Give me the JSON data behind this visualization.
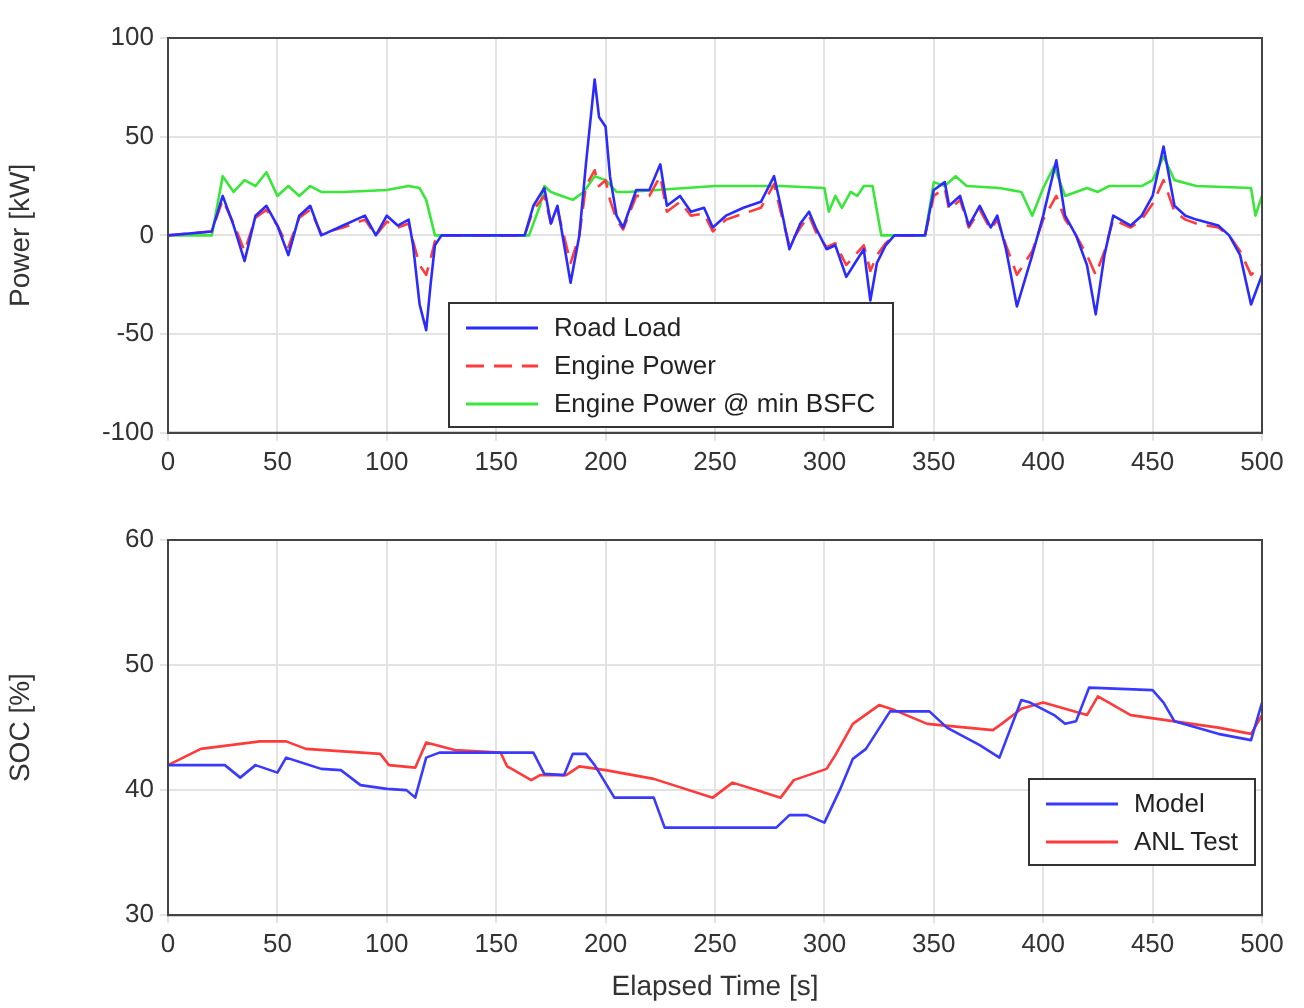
{
  "chart_data": [
    {
      "type": "line",
      "ylabel": "Power [kW]",
      "xlim": [
        0,
        500
      ],
      "xticks": [
        0,
        50,
        100,
        150,
        200,
        250,
        300,
        350,
        400,
        450,
        500
      ],
      "ylim": [
        -100,
        100
      ],
      "yticks": [
        -100,
        -50,
        0,
        50,
        100
      ],
      "grid": true,
      "legend": "bottom",
      "marker": "none",
      "series": [
        {
          "name": "Road Load",
          "color": "#2b2bff",
          "line_style": "solid",
          "x": [
            0,
            20,
            25,
            30,
            35,
            40,
            45,
            50,
            55,
            60,
            65,
            70,
            80,
            90,
            95,
            100,
            105,
            110,
            112,
            115,
            118,
            120,
            122,
            125,
            163,
            167,
            172,
            175,
            178,
            184,
            188,
            191,
            195,
            197,
            200,
            202,
            205,
            208,
            214,
            220,
            225,
            228,
            234,
            239,
            245,
            249,
            255,
            263,
            271,
            277,
            280,
            284,
            289,
            293,
            296,
            301,
            305,
            310,
            314,
            318,
            321,
            324,
            328,
            332,
            346,
            350,
            355,
            357,
            362,
            366,
            371,
            376,
            379,
            383,
            388,
            395,
            400,
            406,
            410,
            415,
            420,
            424,
            428,
            432,
            440,
            445,
            450,
            455,
            460,
            465,
            470,
            480,
            485,
            490,
            495,
            500
          ],
          "values": [
            0,
            2,
            20,
            5,
            -13,
            10,
            15,
            5,
            -10,
            10,
            15,
            0,
            5,
            10,
            0,
            10,
            5,
            8,
            -5,
            -35,
            -48,
            -25,
            -5,
            0,
            0,
            15,
            24,
            6,
            15,
            -24,
            0,
            36,
            79,
            60,
            55,
            30,
            10,
            4,
            23,
            23,
            36,
            15,
            20,
            12,
            14,
            4,
            10,
            14,
            17,
            30,
            15,
            -7,
            6,
            12,
            4,
            -7,
            -5,
            -21,
            -14,
            -7,
            -33,
            -14,
            -5,
            0,
            0,
            23,
            27,
            15,
            20,
            5,
            15,
            4,
            10,
            -7,
            -36,
            -10,
            10,
            38,
            10,
            0,
            -15,
            -40,
            -10,
            10,
            5,
            10,
            20,
            45,
            15,
            10,
            8,
            5,
            0,
            -10,
            -35,
            -20
          ]
        },
        {
          "name": "Engine Power",
          "color": "#ff3b3b",
          "line_style": "dashed",
          "x": [
            0,
            20,
            25,
            30,
            35,
            40,
            45,
            50,
            55,
            60,
            65,
            70,
            80,
            90,
            95,
            100,
            105,
            110,
            112,
            115,
            118,
            120,
            122,
            125,
            163,
            167,
            172,
            175,
            178,
            184,
            188,
            191,
            195,
            197,
            200,
            202,
            205,
            208,
            214,
            220,
            225,
            228,
            234,
            239,
            245,
            249,
            255,
            263,
            271,
            277,
            280,
            284,
            289,
            293,
            296,
            301,
            305,
            310,
            314,
            318,
            321,
            324,
            328,
            332,
            346,
            350,
            355,
            357,
            362,
            366,
            371,
            376,
            379,
            383,
            388,
            395,
            400,
            406,
            410,
            415,
            420,
            424,
            428,
            432,
            440,
            445,
            450,
            455,
            460,
            465,
            470,
            480,
            485,
            490,
            495,
            500
          ],
          "values": [
            0,
            2,
            18,
            6,
            -8,
            9,
            13,
            5,
            -6,
            9,
            13,
            1,
            4,
            8,
            0,
            7,
            4,
            6,
            -3,
            -15,
            -20,
            -12,
            -3,
            0,
            0,
            13,
            20,
            6,
            13,
            -14,
            0,
            25,
            33,
            25,
            28,
            18,
            8,
            3,
            20,
            20,
            30,
            12,
            17,
            10,
            11,
            2,
            8,
            11,
            14,
            26,
            12,
            -5,
            4,
            10,
            2,
            -6,
            -4,
            -15,
            -10,
            -5,
            -18,
            -10,
            -4,
            0,
            0,
            20,
            24,
            13,
            18,
            4,
            13,
            3,
            8,
            -5,
            -20,
            -8,
            8,
            20,
            8,
            0,
            -10,
            -20,
            -8,
            8,
            4,
            8,
            16,
            28,
            12,
            8,
            6,
            4,
            0,
            -8,
            -20,
            -15
          ]
        },
        {
          "name": "Engine Power @ min BSFC",
          "color": "#3ae63a",
          "line_style": "solid",
          "x": [
            0,
            20,
            25,
            30,
            35,
            40,
            45,
            50,
            55,
            60,
            65,
            70,
            80,
            100,
            110,
            115,
            118,
            122,
            165,
            170,
            172,
            175,
            180,
            185,
            190,
            195,
            200,
            205,
            210,
            250,
            280,
            300,
            302,
            305,
            308,
            312,
            315,
            318,
            322,
            326,
            346,
            350,
            355,
            360,
            365,
            380,
            390,
            395,
            400,
            405,
            410,
            415,
            420,
            425,
            430,
            445,
            450,
            455,
            460,
            470,
            495,
            497,
            500
          ],
          "values": [
            0,
            0,
            30,
            22,
            28,
            25,
            32,
            20,
            25,
            20,
            25,
            22,
            22,
            23,
            25,
            24,
            18,
            0,
            0,
            15,
            25,
            22,
            20,
            18,
            22,
            30,
            28,
            22,
            22,
            25,
            25,
            24,
            12,
            20,
            14,
            22,
            20,
            25,
            25,
            0,
            0,
            27,
            25,
            30,
            25,
            24,
            22,
            10,
            24,
            35,
            20,
            22,
            24,
            22,
            25,
            25,
            28,
            40,
            28,
            25,
            24,
            10,
            20
          ]
        }
      ]
    },
    {
      "type": "line",
      "xlabel": "Elapsed Time [s]",
      "ylabel": "SOC [%]",
      "xlim": [
        0,
        500
      ],
      "xticks": [
        0,
        50,
        100,
        150,
        200,
        250,
        300,
        350,
        400,
        450,
        500
      ],
      "ylim": [
        30,
        60
      ],
      "yticks": [
        30,
        40,
        50,
        60
      ],
      "grid": true,
      "legend": "bottom right",
      "marker": "none",
      "series": [
        {
          "name": "Model",
          "color": "#3a3aff",
          "x": [
            0,
            26,
            33,
            40,
            50,
            54,
            70,
            79,
            88,
            100,
            109,
            113,
            118,
            124,
            167,
            172,
            181,
            185,
            191,
            195,
            204,
            222,
            227,
            278,
            284,
            292,
            300,
            307,
            313,
            319,
            330,
            348,
            356,
            371,
            380,
            390,
            394,
            405,
            410,
            415,
            421,
            450,
            455,
            460,
            480,
            495,
            500
          ],
          "values": [
            42,
            42,
            41,
            42,
            41.4,
            42.6,
            41.7,
            41.6,
            40.4,
            40.1,
            40,
            39.4,
            42.6,
            43,
            43,
            41.3,
            41.2,
            42.9,
            42.9,
            42,
            39.4,
            39.4,
            37,
            37,
            38,
            38,
            37.4,
            40,
            42.5,
            43.3,
            46.3,
            46.3,
            45,
            43.6,
            42.6,
            47.2,
            47,
            46,
            45.3,
            45.5,
            48.2,
            48,
            47,
            45.5,
            44.5,
            44,
            47
          ]
        },
        {
          "name": "ANL Test",
          "color": "#ff3a3a",
          "x": [
            0,
            15,
            42,
            54,
            63,
            97,
            101,
            113,
            118,
            131,
            152,
            155,
            166,
            170,
            182,
            188,
            200,
            222,
            249,
            258,
            280,
            286,
            301,
            305,
            313,
            325,
            332,
            347,
            377,
            381,
            390,
            400,
            410,
            420,
            425,
            440,
            460,
            480,
            495,
            500
          ],
          "values": [
            42,
            43.3,
            43.9,
            43.9,
            43.3,
            42.9,
            42,
            41.8,
            43.8,
            43.2,
            43,
            41.9,
            40.8,
            41.2,
            41.2,
            41.9,
            41.6,
            40.9,
            39.4,
            40.6,
            39.4,
            40.8,
            41.7,
            42.8,
            45.3,
            46.8,
            46.4,
            45.3,
            44.8,
            45.3,
            46.5,
            47,
            46.5,
            46,
            47.5,
            46,
            45.5,
            45,
            44.5,
            46
          ]
        }
      ]
    }
  ]
}
